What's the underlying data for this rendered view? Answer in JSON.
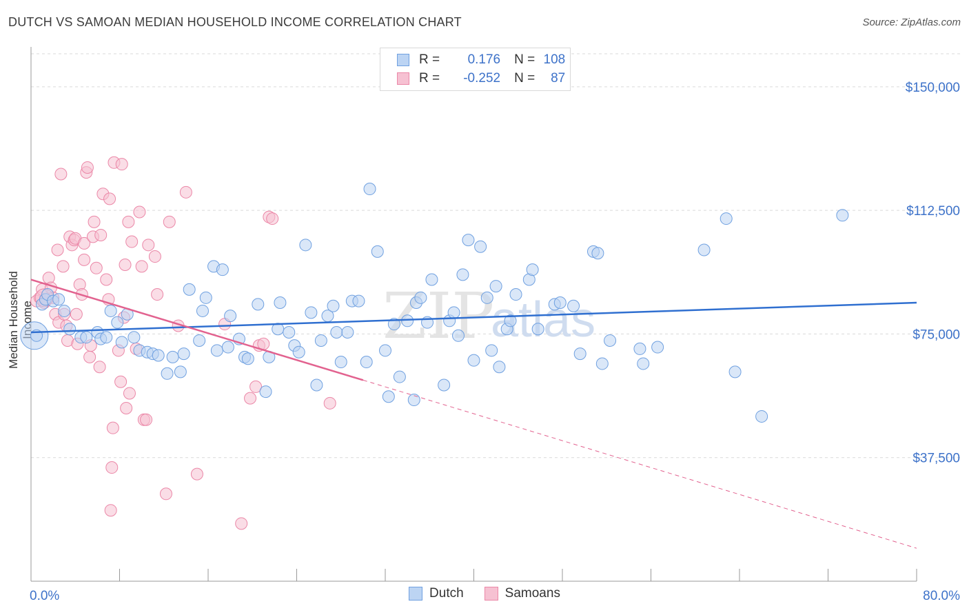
{
  "header": {
    "title": "DUTCH VS SAMOAN MEDIAN HOUSEHOLD INCOME CORRELATION CHART",
    "source": "Source: ZipAtlas.com"
  },
  "legend_top": {
    "rows": [
      {
        "r_label": "R =",
        "r_value": "0.176",
        "n_label": "N =",
        "n_value": "108"
      },
      {
        "r_label": "R =",
        "r_value": "-0.252",
        "n_label": "N =",
        "n_value": "87"
      }
    ]
  },
  "chart_data": {
    "type": "scatter",
    "ylabel": "Median Household Income",
    "xlim": [
      0,
      80
    ],
    "ylim": [
      0,
      160000
    ],
    "x_tick_labels": [
      "0.0%",
      "80.0%"
    ],
    "y_ticks": [
      37500,
      75000,
      112500,
      150000
    ],
    "y_tick_labels": [
      "$37,500",
      "$75,000",
      "$112,500",
      "$150,000"
    ],
    "grid": "horizontal dashed",
    "colors": {
      "dutch": "#6fa0e0",
      "dutch_fill": "#bcd4f3",
      "dutch_line": "#2f6fd0",
      "samoan": "#eb87a7",
      "samoan_fill": "#f6c1d2",
      "samoan_line": "#e2628f",
      "accent_text": "#3d72c9"
    },
    "series": [
      {
        "name": "Dutch",
        "trend": {
          "x0": 0,
          "y0": 75500,
          "x1": 80,
          "y1": 84500
        },
        "points": [
          [
            0.5,
            74500
          ],
          [
            1.0,
            84000
          ],
          [
            1.3,
            85500
          ],
          [
            1.5,
            87000
          ],
          [
            2.0,
            85000
          ],
          [
            2.5,
            85500
          ],
          [
            3.0,
            82000
          ],
          [
            3.5,
            76500
          ],
          [
            4.5,
            74000
          ],
          [
            5.0,
            74000
          ],
          [
            6.0,
            75500
          ],
          [
            6.3,
            73500
          ],
          [
            6.8,
            74000
          ],
          [
            7.2,
            82000
          ],
          [
            7.8,
            78500
          ],
          [
            8.2,
            72500
          ],
          [
            8.7,
            81000
          ],
          [
            9.3,
            74000
          ],
          [
            9.8,
            70000
          ],
          [
            10.5,
            69500
          ],
          [
            11.0,
            69000
          ],
          [
            11.5,
            68500
          ],
          [
            12.3,
            63000
          ],
          [
            12.8,
            68000
          ],
          [
            13.5,
            63500
          ],
          [
            13.8,
            69000
          ],
          [
            14.3,
            88500
          ],
          [
            15.2,
            73000
          ],
          [
            15.5,
            82000
          ],
          [
            15.8,
            86000
          ],
          [
            16.5,
            95500
          ],
          [
            16.8,
            70000
          ],
          [
            17.3,
            94500
          ],
          [
            17.8,
            71000
          ],
          [
            18.0,
            80500
          ],
          [
            18.8,
            73500
          ],
          [
            19.3,
            68000
          ],
          [
            19.6,
            67500
          ],
          [
            20.5,
            84000
          ],
          [
            21.2,
            57500
          ],
          [
            21.5,
            68000
          ],
          [
            22.3,
            76500
          ],
          [
            22.5,
            84500
          ],
          [
            23.3,
            75500
          ],
          [
            23.8,
            71500
          ],
          [
            24.2,
            69500
          ],
          [
            24.8,
            102000
          ],
          [
            25.3,
            81500
          ],
          [
            25.8,
            59500
          ],
          [
            26.2,
            73000
          ],
          [
            26.8,
            80500
          ],
          [
            27.3,
            83500
          ],
          [
            27.6,
            75500
          ],
          [
            28.0,
            66500
          ],
          [
            28.6,
            75500
          ],
          [
            29.0,
            85000
          ],
          [
            29.6,
            85000
          ],
          [
            30.3,
            66500
          ],
          [
            30.6,
            119000
          ],
          [
            31.3,
            100000
          ],
          [
            32.0,
            70000
          ],
          [
            32.3,
            56000
          ],
          [
            32.8,
            78000
          ],
          [
            33.3,
            62000
          ],
          [
            34.0,
            79000
          ],
          [
            34.6,
            55000
          ],
          [
            34.8,
            84500
          ],
          [
            35.2,
            86000
          ],
          [
            35.8,
            78500
          ],
          [
            36.2,
            91500
          ],
          [
            37.3,
            59500
          ],
          [
            37.8,
            79000
          ],
          [
            38.2,
            81500
          ],
          [
            38.6,
            74500
          ],
          [
            39.0,
            93000
          ],
          [
            39.5,
            103500
          ],
          [
            40.0,
            67000
          ],
          [
            40.6,
            101500
          ],
          [
            41.2,
            86000
          ],
          [
            41.6,
            70000
          ],
          [
            42.0,
            89500
          ],
          [
            42.3,
            65000
          ],
          [
            43.0,
            76500
          ],
          [
            43.3,
            79000
          ],
          [
            43.8,
            87000
          ],
          [
            45.0,
            91500
          ],
          [
            45.3,
            94500
          ],
          [
            45.8,
            76500
          ],
          [
            47.3,
            84000
          ],
          [
            47.8,
            84500
          ],
          [
            49.0,
            83500
          ],
          [
            49.6,
            69000
          ],
          [
            50.8,
            100000
          ],
          [
            51.2,
            99500
          ],
          [
            51.6,
            66000
          ],
          [
            52.3,
            73000
          ],
          [
            55.0,
            70500
          ],
          [
            55.3,
            66000
          ],
          [
            56.6,
            71000
          ],
          [
            60.8,
            100500
          ],
          [
            62.8,
            110000
          ],
          [
            63.6,
            63500
          ],
          [
            66.0,
            50000
          ],
          [
            73.3,
            111000
          ]
        ]
      },
      {
        "name": "Samoans",
        "trend": {
          "x0": 0,
          "y0": 91500,
          "x1": 30,
          "y1": 61000,
          "extend_to_x": 80,
          "extend_to_y": 10000
        },
        "points": [
          [
            0.5,
            85000
          ],
          [
            0.8,
            86000
          ],
          [
            1.0,
            88500
          ],
          [
            1.2,
            84500
          ],
          [
            1.4,
            85500
          ],
          [
            1.6,
            92000
          ],
          [
            1.8,
            89000
          ],
          [
            2.0,
            86000
          ],
          [
            2.2,
            81000
          ],
          [
            2.4,
            100500
          ],
          [
            2.5,
            78500
          ],
          [
            2.7,
            123500
          ],
          [
            2.9,
            95500
          ],
          [
            3.0,
            81000
          ],
          [
            3.2,
            77500
          ],
          [
            3.3,
            73000
          ],
          [
            3.5,
            104500
          ],
          [
            3.7,
            102000
          ],
          [
            3.9,
            103500
          ],
          [
            4.0,
            104000
          ],
          [
            4.1,
            81000
          ],
          [
            4.2,
            72000
          ],
          [
            4.4,
            90000
          ],
          [
            4.6,
            87000
          ],
          [
            4.8,
            102500
          ],
          [
            4.8,
            97500
          ],
          [
            5.0,
            124000
          ],
          [
            5.1,
            125500
          ],
          [
            5.3,
            68000
          ],
          [
            5.4,
            71500
          ],
          [
            5.6,
            104500
          ],
          [
            5.7,
            109000
          ],
          [
            5.9,
            95000
          ],
          [
            6.2,
            65000
          ],
          [
            6.3,
            105000
          ],
          [
            6.5,
            117500
          ],
          [
            6.8,
            91500
          ],
          [
            7.0,
            85500
          ],
          [
            7.1,
            116000
          ],
          [
            7.2,
            21500
          ],
          [
            7.3,
            34500
          ],
          [
            7.4,
            46500
          ],
          [
            7.5,
            127000
          ],
          [
            7.9,
            70000
          ],
          [
            8.1,
            60500
          ],
          [
            8.2,
            126500
          ],
          [
            8.4,
            80000
          ],
          [
            8.5,
            96000
          ],
          [
            8.6,
            52500
          ],
          [
            8.8,
            109000
          ],
          [
            8.9,
            57000
          ],
          [
            9.1,
            103000
          ],
          [
            9.5,
            70500
          ],
          [
            9.8,
            112000
          ],
          [
            10.0,
            95500
          ],
          [
            10.2,
            49000
          ],
          [
            10.4,
            49000
          ],
          [
            10.6,
            102000
          ],
          [
            11.2,
            98500
          ],
          [
            11.4,
            87000
          ],
          [
            12.2,
            26500
          ],
          [
            12.5,
            109000
          ],
          [
            13.3,
            77500
          ],
          [
            14.0,
            118000
          ],
          [
            15.0,
            32500
          ],
          [
            17.5,
            78000
          ],
          [
            19.0,
            17500
          ],
          [
            19.8,
            55500
          ],
          [
            20.3,
            59000
          ],
          [
            20.6,
            71500
          ],
          [
            21.0,
            72000
          ],
          [
            21.5,
            110500
          ],
          [
            21.8,
            110000
          ],
          [
            27.0,
            54000
          ]
        ]
      }
    ]
  },
  "legend_bottom": {
    "items": [
      {
        "label": "Dutch"
      },
      {
        "label": "Samoans"
      }
    ]
  },
  "watermark": {
    "part1": "ZIP",
    "part2": "atlas"
  }
}
